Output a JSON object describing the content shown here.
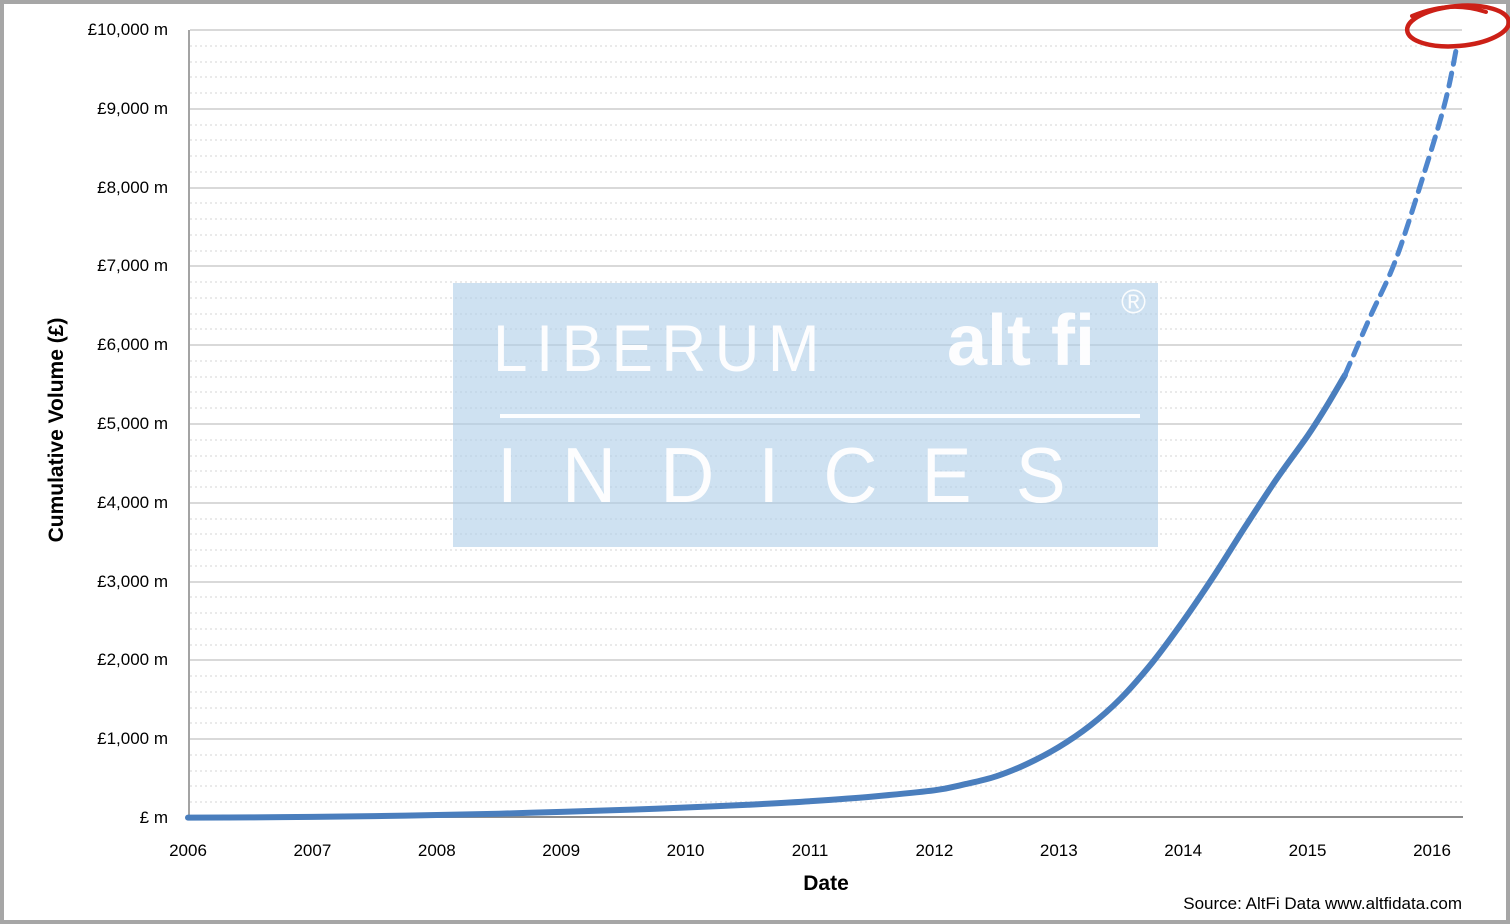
{
  "chart_data": {
    "type": "line",
    "xlabel": "Date",
    "ylabel": "Cumulative Volume (£)",
    "x_ticks": [
      "2006",
      "2007",
      "2008",
      "2009",
      "2010",
      "2011",
      "2012",
      "2013",
      "2014",
      "2015",
      "2016"
    ],
    "y_ticks": [
      "£ m",
      "£1,000 m",
      "£2,000 m",
      "£3,000 m",
      "£4,000 m",
      "£5,000 m",
      "£6,000 m",
      "£7,000 m",
      "£8,000 m",
      "£9,000 m",
      "£10,000 m"
    ],
    "ylim": [
      0,
      10000
    ],
    "xlim": [
      2006,
      2016.25
    ],
    "major_y_step": 1000,
    "minor_y_step": 200,
    "grid": "major solid + minor dotted horizontal",
    "legend": "none",
    "series": [
      {
        "name": "cumulative-volume-actual",
        "style": "solid",
        "color": "#4a7ebd",
        "width": 6,
        "x": [
          2006,
          2006.5,
          2007,
          2007.5,
          2008,
          2008.5,
          2009,
          2009.5,
          2010,
          2010.5,
          2011,
          2011.5,
          2012,
          2012.25,
          2012.5,
          2012.75,
          2013,
          2013.25,
          2013.5,
          2013.75,
          2014,
          2014.25,
          2014.5,
          2014.75,
          2015,
          2015.15,
          2015.3
        ],
        "y": [
          5,
          8,
          14,
          24,
          38,
          55,
          78,
          103,
          133,
          168,
          213,
          272,
          352,
          430,
          530,
          690,
          900,
          1170,
          1520,
          1970,
          2500,
          3080,
          3700,
          4300,
          4850,
          5220,
          5620
        ]
      },
      {
        "name": "cumulative-volume-projection",
        "style": "dashed",
        "color": "#4f86cd",
        "width": 5,
        "x": [
          2015.3,
          2015.5,
          2015.7,
          2015.9,
          2016.1,
          2016.2
        ],
        "y": [
          5620,
          6350,
          7050,
          8000,
          9050,
          9800
        ]
      }
    ],
    "annotation": {
      "shape": "hand-drawn-ellipse",
      "color": "#cc2017",
      "x": 2016.2,
      "y": 9900,
      "meaning": "circles the projected end point near £10,000 m"
    },
    "style": {
      "major_grid_color": "#d9d9d9",
      "minor_grid_color": "#eaeaea",
      "x_axis_color": "#8c8c8c",
      "y_axis_color": "#a3a3a3",
      "frame_border_color": "#a6a6a6",
      "watermark_box_color": "rgba(174,205,231,0.6)"
    }
  },
  "axes": {
    "x_title": "Date",
    "y_title": "Cumulative Volume (£)"
  },
  "watermark": {
    "brand_left": "LIBERUM",
    "brand_right": "alt fi",
    "registered": "®",
    "secondary": "INDICES"
  },
  "source": {
    "text": "Source: AltFi Data www.altfidata.com"
  }
}
